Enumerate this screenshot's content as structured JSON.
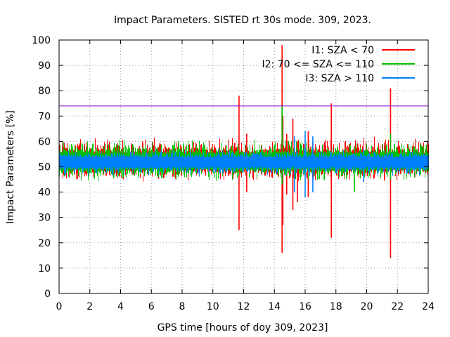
{
  "chart_data": {
    "type": "line",
    "title": "Impact Parameters. SISTED rt 30s mode. 309, 2023.",
    "xlabel": "GPS time [hours of doy 309, 2023]",
    "ylabel": "Impact Parameters [%]",
    "xlim": [
      0,
      24
    ],
    "ylim": [
      0,
      100
    ],
    "x_ticks": [
      0,
      2,
      4,
      6,
      8,
      10,
      12,
      14,
      16,
      18,
      20,
      22,
      24
    ],
    "y_ticks": [
      0,
      10,
      20,
      30,
      40,
      50,
      60,
      70,
      80,
      90,
      100
    ],
    "grid": true,
    "legend_position": "top-right",
    "reference_line": {
      "y": 74,
      "color": "#9400d3"
    },
    "series": [
      {
        "name": "I1: SZA < 70",
        "color": "#ff0000",
        "baseline": 52,
        "band": [
          44,
          62
        ],
        "spikes": [
          {
            "x": 11.7,
            "low": 25,
            "high": 78
          },
          {
            "x": 12.2,
            "low": 40,
            "high": 63
          },
          {
            "x": 14.5,
            "low": 16,
            "high": 98
          },
          {
            "x": 14.55,
            "low": 27,
            "high": 70
          },
          {
            "x": 14.8,
            "low": 39,
            "high": 63
          },
          {
            "x": 15.2,
            "low": 33,
            "high": 69
          },
          {
            "x": 15.5,
            "low": 36,
            "high": 60
          },
          {
            "x": 16.2,
            "low": 38,
            "high": 64
          },
          {
            "x": 17.7,
            "low": 22,
            "high": 75
          },
          {
            "x": 21.55,
            "low": 14,
            "high": 81
          }
        ]
      },
      {
        "name": "I2: 70 <= SZA <= 110",
        "color": "#00c000",
        "baseline": 52,
        "band": [
          44,
          61
        ],
        "spikes": [
          {
            "x": 14.5,
            "low": 43,
            "high": 74
          },
          {
            "x": 19.2,
            "low": 40,
            "high": 58
          },
          {
            "x": 21.55,
            "low": 45,
            "high": 63
          }
        ]
      },
      {
        "name": "I3: SZA > 110",
        "color": "#0080ff",
        "baseline": 52,
        "band": [
          46,
          57
        ],
        "spikes": [
          {
            "x": 15.3,
            "low": 40,
            "high": 62
          },
          {
            "x": 16.0,
            "low": 38,
            "high": 64
          },
          {
            "x": 16.5,
            "low": 40,
            "high": 62
          },
          {
            "x": 19.8,
            "low": 44,
            "high": 57
          }
        ]
      }
    ]
  }
}
